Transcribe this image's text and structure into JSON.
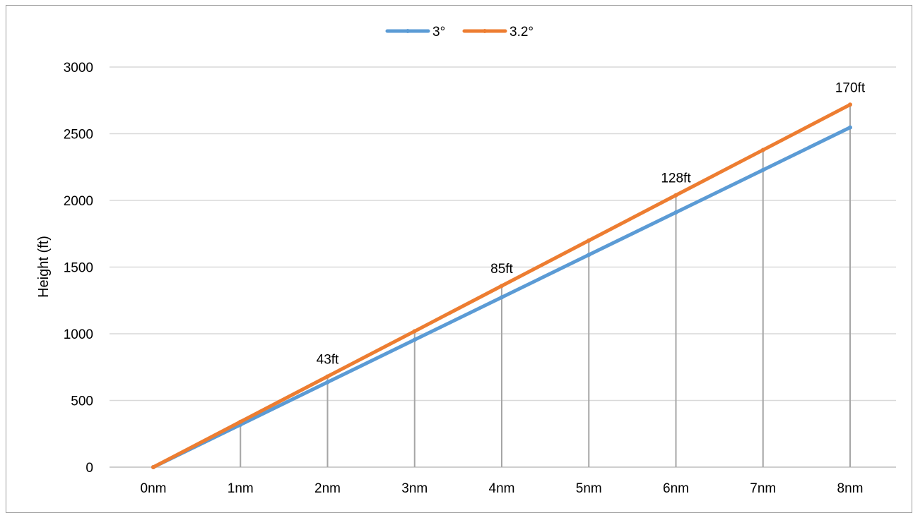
{
  "chart_data": {
    "type": "line",
    "title": "",
    "xlabel": "",
    "ylabel": "Height (ft)",
    "categories": [
      "0nm",
      "1nm",
      "2nm",
      "3nm",
      "4nm",
      "5nm",
      "6nm",
      "7nm",
      "8nm"
    ],
    "ylim": [
      0,
      3000
    ],
    "yticks": [
      0,
      500,
      1000,
      1500,
      2000,
      2500,
      3000
    ],
    "grid": true,
    "legend_position": "top-center",
    "drop_lines": true,
    "series": [
      {
        "name": "3°",
        "color": "#5b9bd5",
        "values": [
          0,
          318,
          637,
          955,
          1273,
          1592,
          1910,
          2228,
          2547
        ]
      },
      {
        "name": "3.2°",
        "color": "#ed7d31",
        "values": [
          0,
          340,
          680,
          1019,
          1359,
          1699,
          2039,
          2378,
          2718
        ]
      }
    ],
    "annotations": [
      {
        "category_index": 2,
        "text": "43ft"
      },
      {
        "category_index": 4,
        "text": "85ft"
      },
      {
        "category_index": 6,
        "text": "128ft"
      },
      {
        "category_index": 8,
        "text": "170ft"
      }
    ]
  }
}
